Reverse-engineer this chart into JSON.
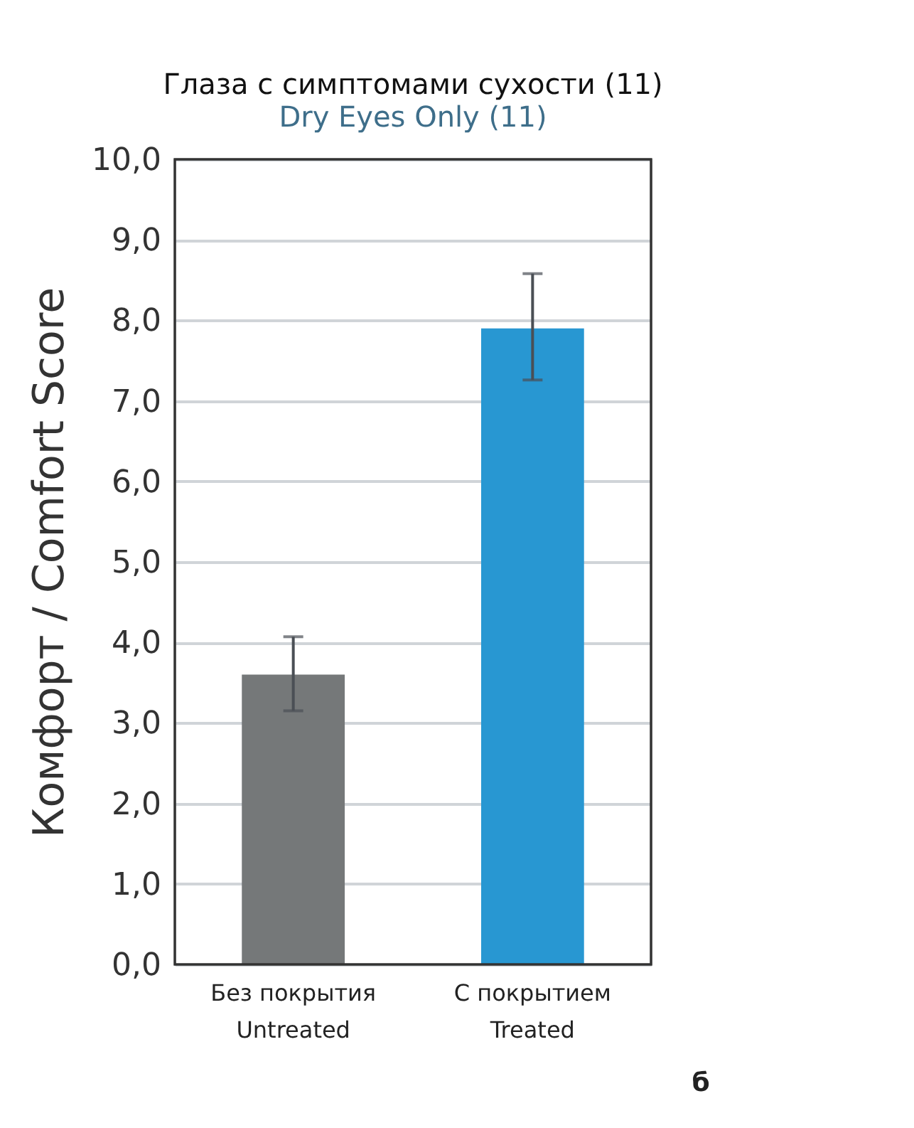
{
  "chart_data": {
    "type": "bar",
    "title": "Глаза с симптомами сухости (11)",
    "subtitle": "Dry Eyes Only (11)",
    "ylabel": "Комфорт / Comfort Score",
    "categories": [
      "Без покрытия\nUntreated",
      "С покрытием\nTreated"
    ],
    "values": [
      3.6,
      7.9
    ],
    "colors": [
      "#757879",
      "#2897d2"
    ],
    "errors": [
      [
        3.15,
        4.07
      ],
      [
        7.26,
        8.58
      ]
    ],
    "ylim": [
      0,
      10
    ],
    "yticks": [
      {
        "value": 0,
        "label": "0,0"
      },
      {
        "value": 1,
        "label": "1,0"
      },
      {
        "value": 2,
        "label": "2,0"
      },
      {
        "value": 3,
        "label": "3,0"
      },
      {
        "value": 4,
        "label": "4,0"
      },
      {
        "value": 5,
        "label": "5,0"
      },
      {
        "value": 6,
        "label": "6,0"
      },
      {
        "value": 7,
        "label": "7,0"
      },
      {
        "value": 8,
        "label": "8,0"
      },
      {
        "value": 9,
        "label": "9,0"
      },
      {
        "value": 10,
        "label": "10,0"
      }
    ],
    "grid": "y",
    "annotations": [
      "б"
    ]
  }
}
